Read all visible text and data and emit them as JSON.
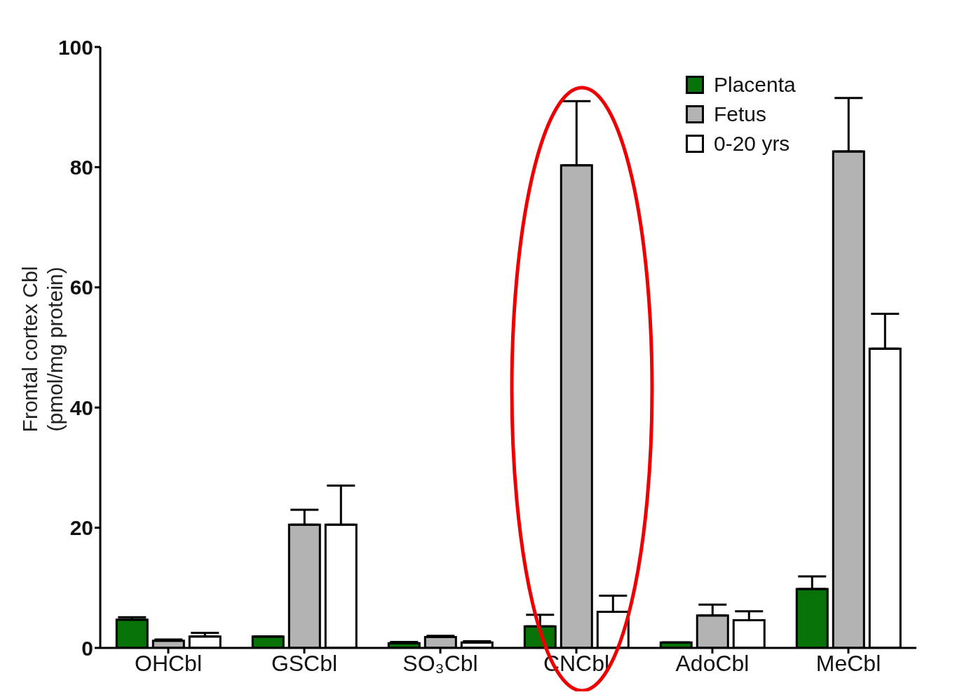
{
  "chart_data": {
    "type": "bar",
    "ylabel": "Frontal cortex Cbl\n(pmol/mg protein)",
    "categories": [
      "OHCbl",
      "GSCbl",
      "SO₃Cbl",
      "CNCbl",
      "AdoCbl",
      "MeCbl"
    ],
    "ylim": [
      0,
      100
    ],
    "yticks": [
      0,
      20,
      40,
      60,
      80,
      100
    ],
    "grid": false,
    "legend": "top right",
    "series": [
      {
        "name": "Placenta",
        "color": "#087308",
        "values": [
          4.7,
          1.9,
          0.8,
          3.6,
          0.9,
          9.8
        ],
        "errors": [
          [
            4.7,
            5.1
          ],
          null,
          [
            0.8,
            1.0
          ],
          [
            3.6,
            5.5
          ],
          null,
          [
            9.8,
            11.9
          ]
        ]
      },
      {
        "name": "Fetus",
        "color": "#b3b3b3",
        "values": [
          1.2,
          20.5,
          1.8,
          80.3,
          5.4,
          82.6
        ],
        "errors": [
          [
            1.2,
            1.4
          ],
          [
            20.5,
            23.0
          ],
          [
            1.8,
            2.0
          ],
          [
            80.3,
            91.0
          ],
          [
            5.4,
            7.2
          ],
          [
            82.6,
            91.5
          ]
        ]
      },
      {
        "name": "0-20 yrs",
        "color": "#ffffff",
        "values": [
          1.9,
          20.5,
          0.9,
          6.0,
          4.6,
          49.8
        ],
        "errors": [
          [
            1.9,
            2.5
          ],
          [
            20.5,
            27.0
          ],
          [
            0.9,
            1.1
          ],
          [
            6.0,
            8.7
          ],
          [
            4.6,
            6.1
          ],
          [
            49.8,
            55.6
          ]
        ]
      }
    ]
  }
}
